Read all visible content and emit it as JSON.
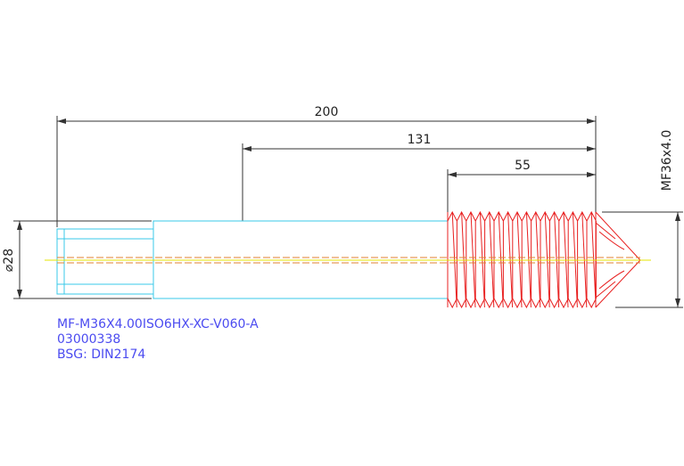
{
  "dimensions": {
    "overall": "200",
    "shaft": "131",
    "thread": "55",
    "diameter": "⌀28",
    "thread_spec": "MF36x4.0"
  },
  "notes": [
    "MF-M36X4.00ISO6HX-XC-V060-A",
    "03000338",
    "BSG: DIN2174"
  ]
}
